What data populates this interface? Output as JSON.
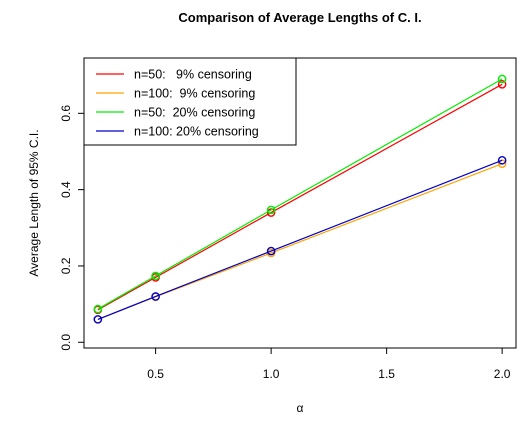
{
  "chart_data": {
    "type": "line",
    "title": "Comparison of Average Lengths of C. I.",
    "xlabel": "α",
    "ylabel": "Average Length of 95% C.I.",
    "x": [
      0.25,
      0.5,
      1.0,
      2.0
    ],
    "xlim": [
      0.19,
      2.06
    ],
    "ylim": [
      -0.015,
      0.745
    ],
    "xticks": [
      0.5,
      1.0,
      1.5,
      2.0
    ],
    "xtick_labels": [
      "0.5",
      "1.0",
      "1.5",
      "2.0"
    ],
    "yticks": [
      0.0,
      0.2,
      0.4,
      0.6
    ],
    "ytick_labels": [
      "0.0",
      "0.2",
      "0.4",
      "0.6"
    ],
    "marker": "o",
    "grid": false,
    "legend_position": "top-left",
    "series": [
      {
        "name": "n=50:   9% censoring",
        "color": "#ff0000",
        "values": [
          0.085,
          0.17,
          0.34,
          0.676
        ]
      },
      {
        "name": "n=100:  9% censoring",
        "color": "#ffa500",
        "values": [
          0.06,
          0.119,
          0.234,
          0.468
        ]
      },
      {
        "name": "n=50:  20% censoring",
        "color": "#00ee00",
        "values": [
          0.087,
          0.174,
          0.347,
          0.69
        ]
      },
      {
        "name": "n=100: 20% censoring",
        "color": "#0000cd",
        "values": [
          0.06,
          0.12,
          0.239,
          0.477
        ]
      }
    ]
  }
}
